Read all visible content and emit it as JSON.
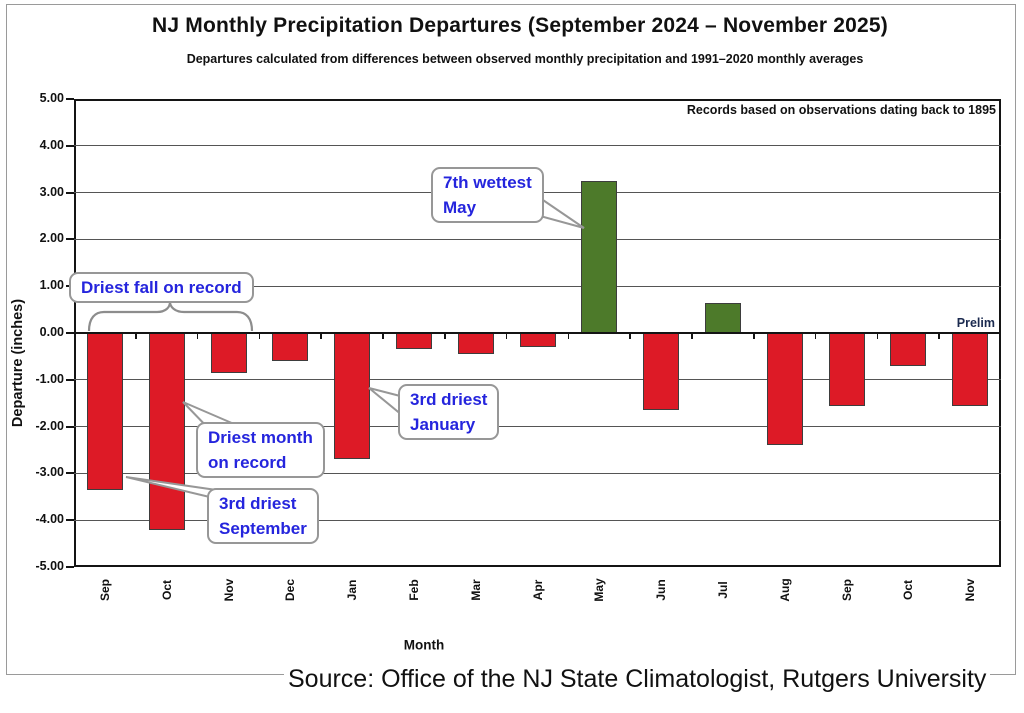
{
  "chart_data": {
    "type": "bar",
    "title": "NJ Monthly Precipitation Departures (September 2024 – November 2025)",
    "subtitle": "Departures calculated from differences between observed monthly precipitation and 1991–2020 monthly averages",
    "note": "Records based on observations dating back to 1895",
    "prelim_label": "Prelim",
    "xlabel": "Month",
    "ylabel": "Departure (inches)",
    "categories": [
      "Sep",
      "Oct",
      "Nov",
      "Dec",
      "Jan",
      "Feb",
      "Mar",
      "Apr",
      "May",
      "Jun",
      "Jul",
      "Aug",
      "Sep",
      "Oct",
      "Nov"
    ],
    "values": [
      -3.35,
      -4.2,
      -0.85,
      -0.6,
      -2.7,
      -0.35,
      -0.45,
      -0.3,
      3.25,
      -1.65,
      0.65,
      -2.4,
      -1.55,
      -0.7,
      -1.55
    ],
    "ylim": [
      -5,
      5
    ],
    "ytick_labels": [
      "5.00",
      "4.00",
      "3.00",
      "2.00",
      "1.00",
      "0.00",
      "-1.00",
      "-2.00",
      "-3.00",
      "-4.00",
      "-5.00"
    ],
    "grid": "horizontal",
    "legend": "none",
    "bar_colors": {
      "positive": "#4d7a2a",
      "negative": "#dd1a26"
    },
    "annotations": {
      "driest_fall": {
        "text": "Driest fall on record"
      },
      "driest_month": {
        "line1": "Driest month",
        "line2": "on record",
        "target": "Oct"
      },
      "third_driest_september": {
        "line1": "3rd driest",
        "line2": "September",
        "target": "Sep"
      },
      "third_driest_january": {
        "line1": "3rd driest",
        "line2": "January",
        "target": "Jan"
      },
      "seventh_wettest_may": {
        "line1": "7th wettest",
        "line2": "May",
        "target": "May"
      }
    }
  },
  "footer": {
    "source": "Source: Office of the NJ State Climatologist, Rutgers University"
  }
}
